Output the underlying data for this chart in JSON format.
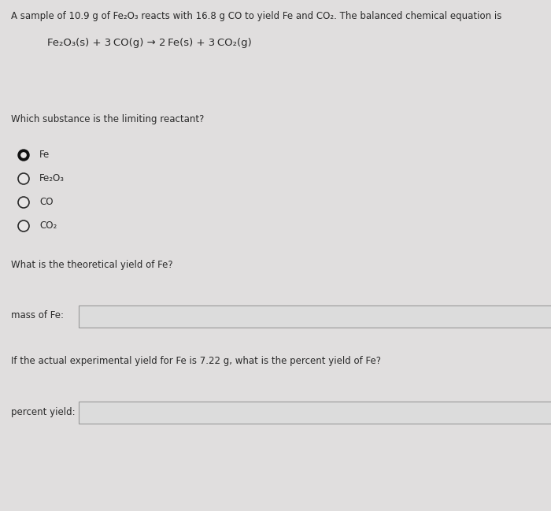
{
  "background_color": "#e0dede",
  "panel_color": "#e8e6e6",
  "header_text": "A sample of 10.9 g of Fe₂O₃ reacts with 16.8 g CO to yield Fe and CO₂. The balanced chemical equation is",
  "equation_text": "Fe₂O₃(s) + 3 CO(g) → 2 Fe(s) + 3 CO₂(g)",
  "question1": "Which substance is the limiting reactant?",
  "radio_options": [
    "Fe",
    "Fe₂O₃",
    "CO",
    "CO₂"
  ],
  "selected_option": 0,
  "question2": "What is the theoretical yield of Fe?",
  "label_mass": "mass of Fe:",
  "question3": "If the actual experimental yield for Fe is 7.22 g, what is the percent yield of Fe?",
  "label_percent": "percent yield:",
  "font_size_header": 8.5,
  "font_size_eq": 9.5,
  "font_size_body": 8.5,
  "font_size_radio": 8.5,
  "text_color": "#2a2a2a",
  "box_edge": "#999999",
  "box_fill": "#dcdcdc",
  "radio_fill_selected": "#111111",
  "radio_fill_empty": "#e8e6e6",
  "radio_edge": "#2a2a2a"
}
